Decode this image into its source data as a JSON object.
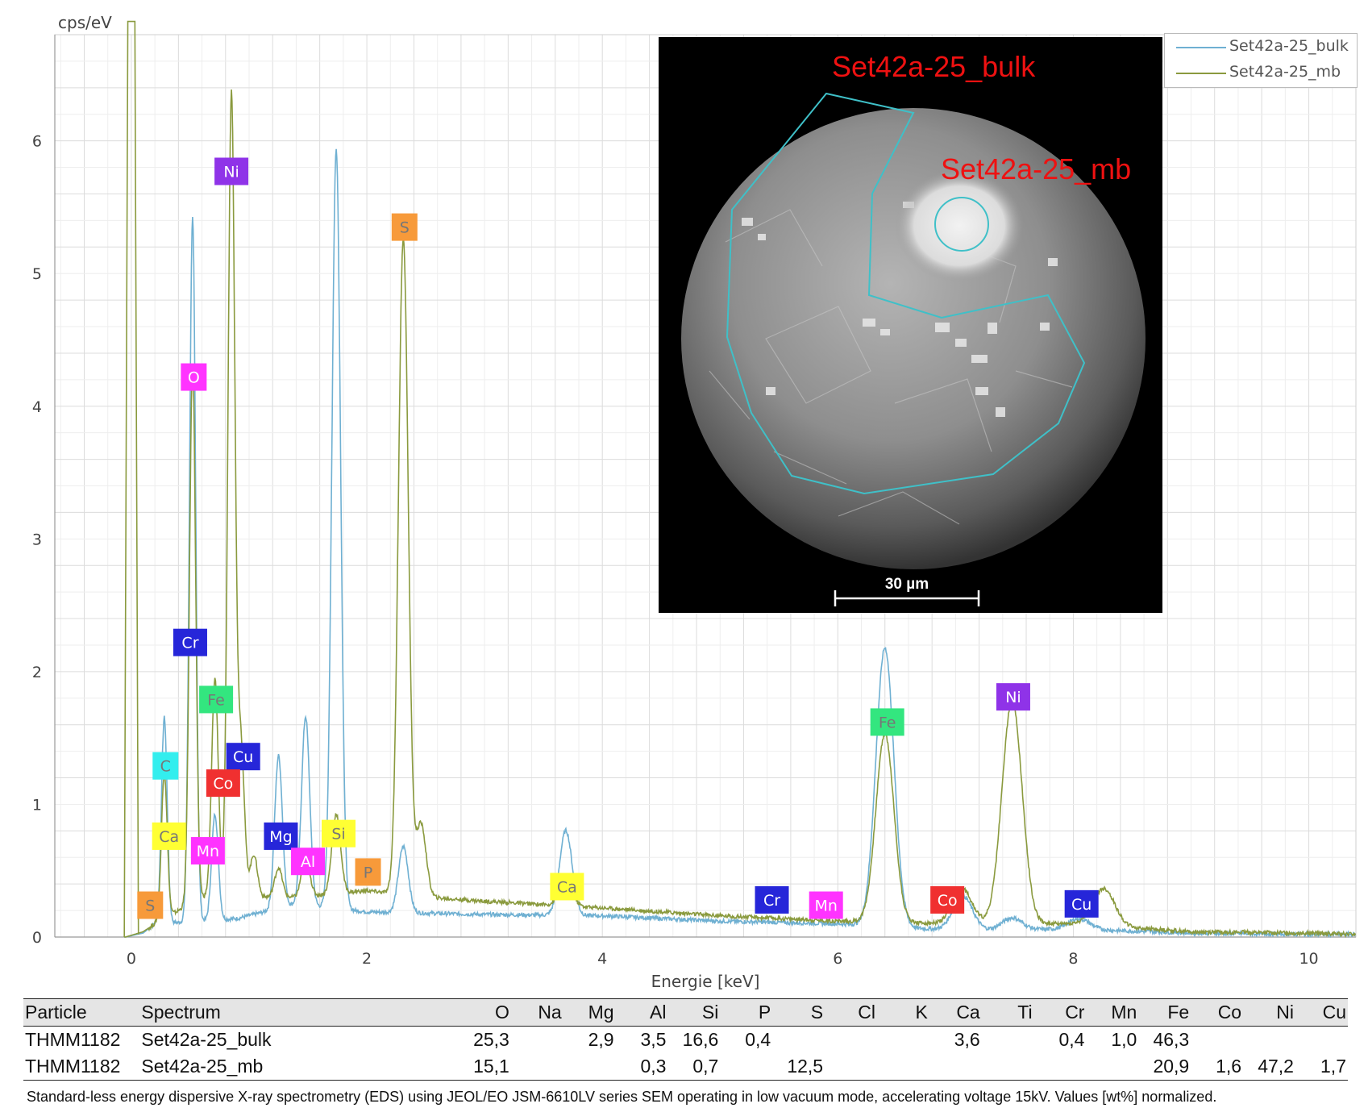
{
  "chart_data": {
    "type": "line",
    "ylabel": "cps/eV",
    "xlabel": "Energie [keV]",
    "xlim": [
      -0.65,
      10.4
    ],
    "ylim": [
      0,
      6.8
    ],
    "x_ticks": [
      0,
      2,
      4,
      6,
      8,
      10
    ],
    "y_ticks": [
      0,
      1,
      2,
      3,
      4,
      5,
      6
    ],
    "grid": true,
    "legend_position": "top-right",
    "series": [
      {
        "name": "Set42a-25_bulk",
        "color": "#6fb0d2",
        "peaks": [
          [
            0.28,
            1.55
          ],
          [
            0.52,
            5.3
          ],
          [
            0.71,
            0.8
          ],
          [
            1.25,
            1.15
          ],
          [
            1.48,
            1.42
          ],
          [
            1.74,
            5.72
          ],
          [
            2.31,
            0.5
          ],
          [
            3.69,
            0.64
          ],
          [
            6.4,
            2.1
          ],
          [
            7.06,
            0.26
          ],
          [
            7.48,
            0.09
          ],
          [
            8.05,
            0.08
          ]
        ],
        "baseline": [
          [
            -0.05,
            0
          ],
          [
            0.1,
            0.03
          ],
          [
            0.2,
            0.1
          ],
          [
            0.6,
            0.12
          ],
          [
            0.9,
            0.14
          ],
          [
            1.4,
            0.25
          ],
          [
            2.0,
            0.19
          ],
          [
            3.0,
            0.17
          ],
          [
            4.0,
            0.16
          ],
          [
            5.0,
            0.12
          ],
          [
            6.0,
            0.1
          ],
          [
            7.0,
            0.05
          ],
          [
            8.0,
            0.06
          ],
          [
            9.0,
            0.03
          ],
          [
            10.0,
            0.02
          ],
          [
            10.4,
            0.02
          ]
        ]
      },
      {
        "name": "Set42a-25_mb",
        "color": "#8a9a3e",
        "peaks": [
          [
            0.28,
            1.1
          ],
          [
            0.52,
            4.05
          ],
          [
            0.71,
            1.65
          ],
          [
            0.85,
            6.05
          ],
          [
            0.93,
            1.15
          ],
          [
            1.04,
            0.32
          ],
          [
            1.25,
            0.22
          ],
          [
            1.48,
            0.3
          ],
          [
            1.74,
            0.6
          ],
          [
            2.31,
            4.95
          ],
          [
            2.46,
            0.55
          ],
          [
            3.69,
            0.2
          ],
          [
            6.4,
            1.42
          ],
          [
            7.06,
            0.26
          ],
          [
            7.48,
            1.68
          ],
          [
            8.26,
            0.28
          ]
        ],
        "baseline": [
          [
            -0.05,
            0
          ],
          [
            0.1,
            0.04
          ],
          [
            0.2,
            0.1
          ],
          [
            0.6,
            0.3
          ],
          [
            0.9,
            0.3
          ],
          [
            1.4,
            0.3
          ],
          [
            2.0,
            0.35
          ],
          [
            2.5,
            0.3
          ],
          [
            3.0,
            0.27
          ],
          [
            4.0,
            0.22
          ],
          [
            5.0,
            0.16
          ],
          [
            6.0,
            0.12
          ],
          [
            7.0,
            0.1
          ],
          [
            8.0,
            0.1
          ],
          [
            9.0,
            0.04
          ],
          [
            10.0,
            0.03
          ],
          [
            10.4,
            0.02
          ]
        ]
      }
    ],
    "element_labels": [
      {
        "el": "Ni",
        "x": 0.85,
        "y": 5.77,
        "color": "#8f33e8"
      },
      {
        "el": "S",
        "x": 2.32,
        "y": 5.35,
        "color": "#f79a3a"
      },
      {
        "el": "O",
        "x": 0.53,
        "y": 4.22,
        "color": "#ff33ff"
      },
      {
        "el": "Cr",
        "x": 0.5,
        "y": 2.22,
        "color": "#2626d9"
      },
      {
        "el": "Fe",
        "x": 0.72,
        "y": 1.79,
        "color": "#33e67f"
      },
      {
        "el": "Cu",
        "x": 0.95,
        "y": 1.36,
        "color": "#2626d9"
      },
      {
        "el": "C",
        "x": 0.29,
        "y": 1.29,
        "color": "#33eeee"
      },
      {
        "el": "Co",
        "x": 0.78,
        "y": 1.16,
        "color": "#f03030"
      },
      {
        "el": "Mg",
        "x": 1.27,
        "y": 0.76,
        "color": "#2626d9"
      },
      {
        "el": "Si",
        "x": 1.76,
        "y": 0.78,
        "color": "#ffff33"
      },
      {
        "el": "Ca",
        "x": 0.32,
        "y": 0.76,
        "color": "#ffff33"
      },
      {
        "el": "Mn",
        "x": 0.65,
        "y": 0.65,
        "color": "#ff33ff"
      },
      {
        "el": "Al",
        "x": 1.5,
        "y": 0.57,
        "color": "#ff33ff"
      },
      {
        "el": "P",
        "x": 2.01,
        "y": 0.49,
        "color": "#f79a3a"
      },
      {
        "el": "S",
        "x": 0.16,
        "y": 0.24,
        "color": "#f79a3a"
      },
      {
        "el": "Ca",
        "x": 3.7,
        "y": 0.38,
        "color": "#ffff33"
      },
      {
        "el": "Cr",
        "x": 5.44,
        "y": 0.28,
        "color": "#2626d9"
      },
      {
        "el": "Mn",
        "x": 5.9,
        "y": 0.24,
        "color": "#ff33ff"
      },
      {
        "el": "Co",
        "x": 6.93,
        "y": 0.28,
        "color": "#f03030"
      },
      {
        "el": "Cu",
        "x": 8.07,
        "y": 0.25,
        "color": "#2626d9"
      },
      {
        "el": "Fe",
        "x": 6.42,
        "y": 1.62,
        "color": "#33e67f"
      },
      {
        "el": "Ni",
        "x": 7.49,
        "y": 1.81,
        "color": "#8f33e8"
      }
    ]
  },
  "sem_image": {
    "label_bulk": "Set42a-25_bulk",
    "label_mb": "Set42a-25_mb",
    "scale_bar": "30 µm",
    "label_color": "#ee1111",
    "outline_color": "#3fc0c8"
  },
  "table": {
    "headers": [
      "Particle",
      "Spectrum",
      "O",
      "Na",
      "Mg",
      "Al",
      "Si",
      "P",
      "S",
      "Cl",
      "K",
      "Ca",
      "Ti",
      "Cr",
      "Mn",
      "Fe",
      "Co",
      "Ni",
      "Cu"
    ],
    "rows": [
      [
        "THMM1182",
        "Set42a-25_bulk",
        "25,3",
        "",
        "2,9",
        "3,5",
        "16,6",
        "0,4",
        "",
        "",
        "",
        "3,6",
        "",
        "0,4",
        "1,0",
        "46,3",
        "",
        "",
        ""
      ],
      [
        "THMM1182",
        "Set42a-25_mb",
        "15,1",
        "",
        "",
        "0,3",
        "0,7",
        "",
        "12,5",
        "",
        "",
        "",
        "",
        "",
        "",
        "20,9",
        "1,6",
        "47,2",
        "1,7"
      ]
    ]
  },
  "caption": "Standard-less energy dispersive X-ray spectrometry (EDS) using JEOL/EO JSM-6610LV series SEM operating in low vacuum mode, accelerating voltage 15kV. Values [wt%] normalized."
}
